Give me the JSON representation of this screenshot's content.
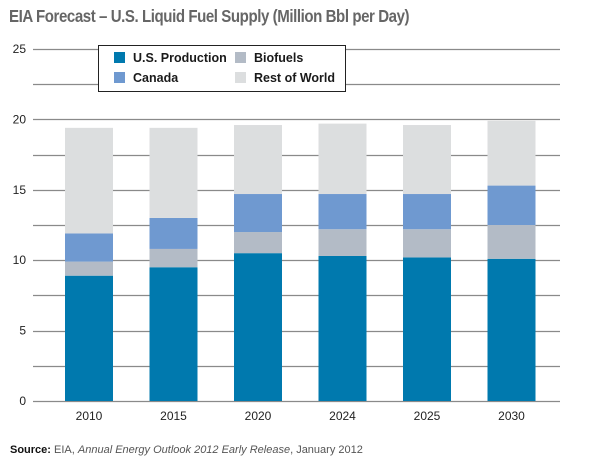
{
  "chart_data": {
    "type": "bar",
    "stacked": true,
    "title": "EIA Forecast – U.S. Liquid Fuel Supply (Million Bbl per Day)",
    "xlabel": "",
    "ylabel": "",
    "ylim": [
      0,
      25
    ],
    "yticks": [
      0,
      5,
      10,
      15,
      20,
      25
    ],
    "grid_step": 2.5,
    "grid": true,
    "legend_position": "top-left",
    "categories": [
      "2010",
      "2015",
      "2020",
      "2024",
      "2025",
      "2030"
    ],
    "series": [
      {
        "name": "U.S. Production",
        "color": "#0079ae",
        "values": [
          8.9,
          9.5,
          10.5,
          10.3,
          10.2,
          10.1
        ]
      },
      {
        "name": "Biofuels",
        "color": "#b3bbc6",
        "values": [
          1.0,
          1.3,
          1.5,
          1.9,
          2.0,
          2.4
        ]
      },
      {
        "name": "Canada",
        "color": "#6f99d0",
        "values": [
          2.0,
          2.2,
          2.7,
          2.5,
          2.5,
          2.8
        ]
      },
      {
        "name": "Rest of World",
        "color": "#dcdedf",
        "values": [
          7.5,
          6.4,
          4.9,
          5.0,
          4.9,
          4.6
        ]
      }
    ],
    "legend_order": [
      "U.S. Production",
      "Biofuels",
      "Canada",
      "Rest of World"
    ]
  },
  "source": {
    "label": "Source:",
    "org": "EIA,",
    "publication": "Annual Energy Outlook 2012 Early Release",
    "date": ", January 2012"
  }
}
